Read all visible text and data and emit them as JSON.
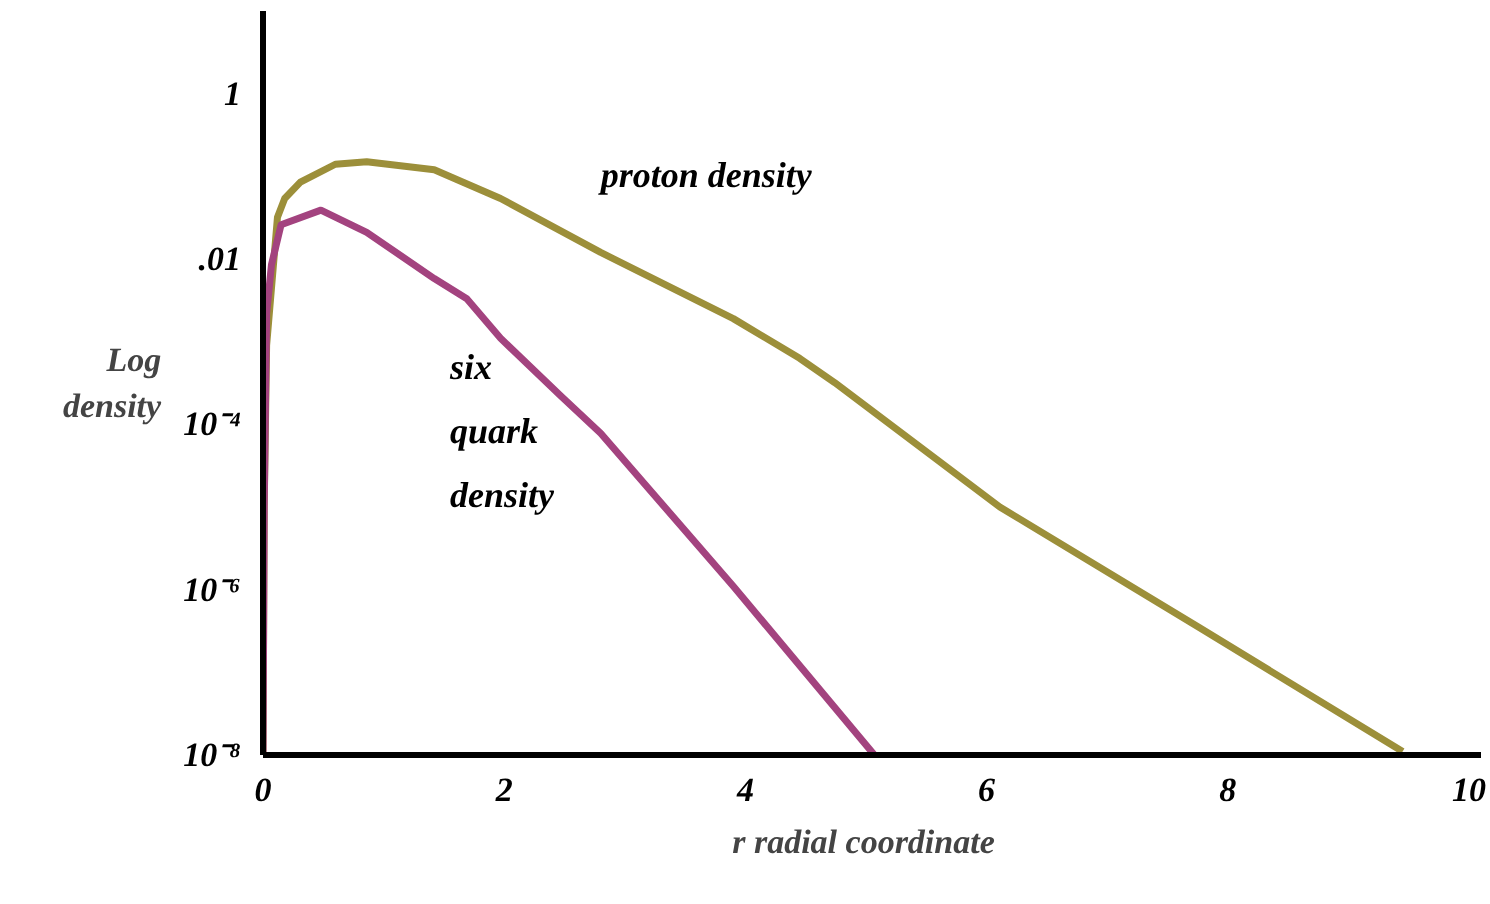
{
  "chart_data": {
    "type": "line",
    "xlabel": "r   radial coordinate",
    "ylabel": "Log density",
    "log": "y",
    "grid": false,
    "legend": false,
    "marker": "none",
    "line_style": "solid",
    "xlim": [
      0,
      10.1
    ],
    "xticks": [
      0,
      2,
      4,
      6,
      8,
      10
    ],
    "ylim": [
      1e-08,
      10
    ],
    "yticks": [
      1,
      {
        "value": 0.01,
        "label": ".01"
      },
      {
        "value": 0.0001,
        "label": "10⁻⁴"
      },
      {
        "value": 1e-06,
        "label": "10⁻⁶"
      },
      {
        "value": 1e-08,
        "label": "10⁻⁸"
      }
    ],
    "series": [
      {
        "name": "proton density",
        "color": "#9c8f3a",
        "x": [
          0.0,
          0.01,
          0.03,
          0.12,
          0.18,
          0.31,
          0.6,
          0.86,
          1.42,
          1.97,
          2.8,
          3.9,
          4.45,
          4.74,
          6.11,
          7.76,
          9.45
        ],
        "values": [
          1e-08,
          1e-05,
          0.0009,
          0.032,
          0.054,
          0.085,
          0.14,
          0.15,
          0.12,
          0.054,
          0.012,
          0.0019,
          0.00063,
          0.00032,
          1e-05,
          3.5e-07,
          1.1e-08
        ]
      },
      {
        "name": "six quark density",
        "color": "#a3437f",
        "x": [
          0.0,
          0.01,
          0.03,
          0.07,
          0.15,
          0.48,
          0.86,
          1.42,
          1.69,
          1.97,
          2.47,
          2.8,
          3.9,
          5.07
        ],
        "values": [
          1e-08,
          1e-05,
          0.0022,
          0.0085,
          0.026,
          0.039,
          0.021,
          0.0058,
          0.0033,
          0.0011,
          0.00022,
          7.8e-05,
          1.1e-06,
          1e-08
        ]
      }
    ]
  }
}
